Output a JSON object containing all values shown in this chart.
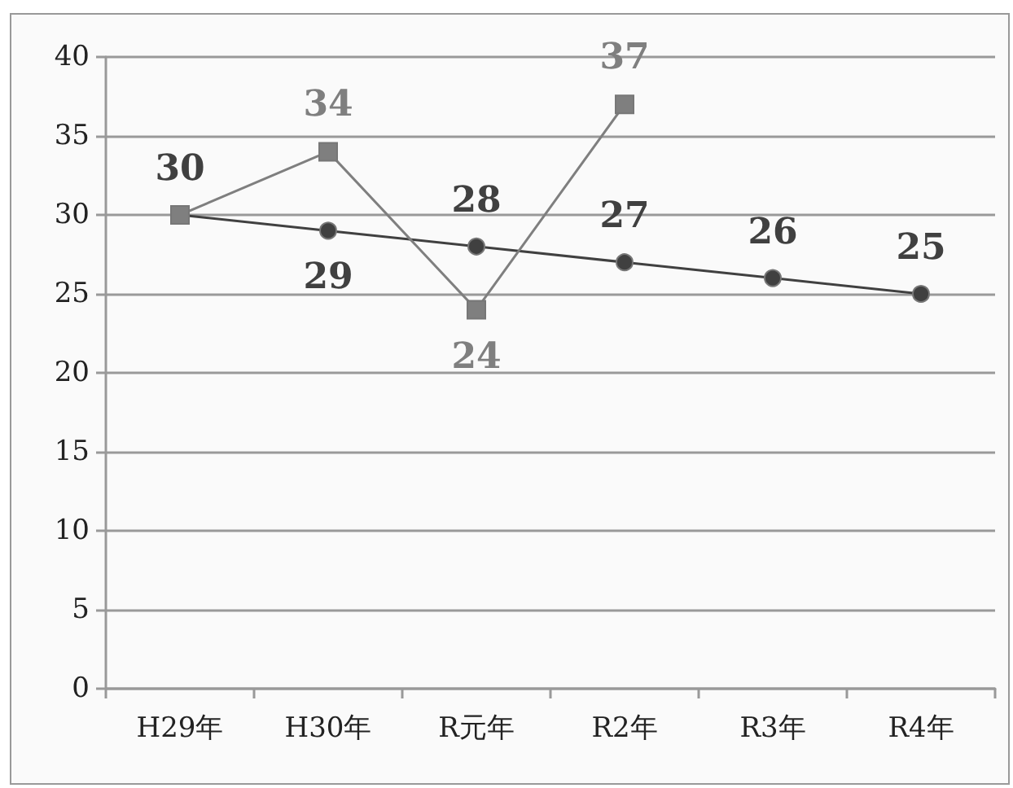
{
  "chart_data": {
    "type": "line",
    "categories": [
      "H29年",
      "H30年",
      "R元年",
      "R2年",
      "R3年",
      "R4年"
    ],
    "series": [
      {
        "color": "#404040",
        "marker": "circle",
        "values": [
          30,
          29,
          28,
          27,
          26,
          25
        ],
        "value_labels": [
          "30",
          "29",
          "28",
          "27",
          "26",
          "25"
        ]
      },
      {
        "color": "#7f7f7f",
        "marker": "square",
        "values": [
          30,
          34,
          24,
          37,
          null,
          null
        ],
        "value_labels": [
          null,
          "34",
          "24",
          "37",
          null,
          null
        ]
      }
    ],
    "ylim": [
      0,
      40
    ],
    "yticks": [
      0,
      5,
      10,
      15,
      20,
      25,
      30,
      35,
      40
    ],
    "grid": "y"
  }
}
